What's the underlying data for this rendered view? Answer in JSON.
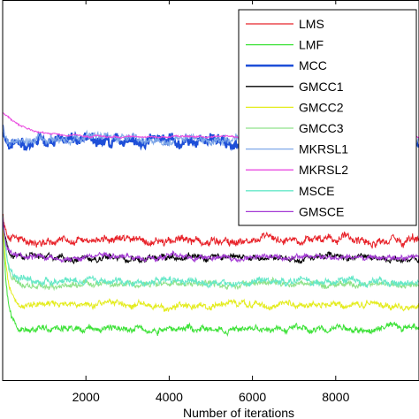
{
  "chart_data": {
    "type": "line",
    "title": "",
    "xlabel": "Number of iterations",
    "ylabel": "",
    "xlim": [
      0,
      10000
    ],
    "ylim": [
      0,
      1
    ],
    "x_ticks": [
      2000,
      4000,
      6000,
      8000
    ],
    "x_tick_labels": [
      "2000",
      "4000",
      "6000",
      "8000"
    ],
    "grid": false,
    "legend_position": "top-right",
    "series": [
      {
        "name": "LMS",
        "color": "#e8242b",
        "start": 0.44,
        "steady": 0.367,
        "noise": 0.009,
        "transient_iters": 250
      },
      {
        "name": "LMF",
        "color": "#3fe23a",
        "start": 0.44,
        "steady": 0.135,
        "noise": 0.007,
        "transient_iters": 250
      },
      {
        "name": "MCC",
        "color": "#1e4fd8",
        "start": 0.67,
        "steady": 0.628,
        "noise": 0.012,
        "transient_iters": 150
      },
      {
        "name": "GMCC1",
        "color": "#000000",
        "start": 0.44,
        "steady": 0.322,
        "noise": 0.007,
        "transient_iters": 200
      },
      {
        "name": "GMCC2",
        "color": "#e4ec1e",
        "start": 0.44,
        "steady": 0.198,
        "noise": 0.007,
        "transient_iters": 250
      },
      {
        "name": "GMCC3",
        "color": "#8fe28a",
        "start": 0.44,
        "steady": 0.252,
        "noise": 0.007,
        "transient_iters": 250
      },
      {
        "name": "MKRSL1",
        "color": "#7fa8e8",
        "start": 0.67,
        "steady": 0.632,
        "noise": 0.01,
        "transient_iters": 150
      },
      {
        "name": "MKRSL2",
        "color": "#ea4ee0",
        "start": 0.705,
        "steady": 0.64,
        "noise": 0.002,
        "transient_iters": 1400
      },
      {
        "name": "MSCE",
        "color": "#66e8c8",
        "start": 0.44,
        "steady": 0.26,
        "noise": 0.008,
        "transient_iters": 250
      },
      {
        "name": "GMSCE",
        "color": "#a43ad4",
        "start": 0.44,
        "steady": 0.322,
        "noise": 0.006,
        "transient_iters": 200
      }
    ]
  }
}
